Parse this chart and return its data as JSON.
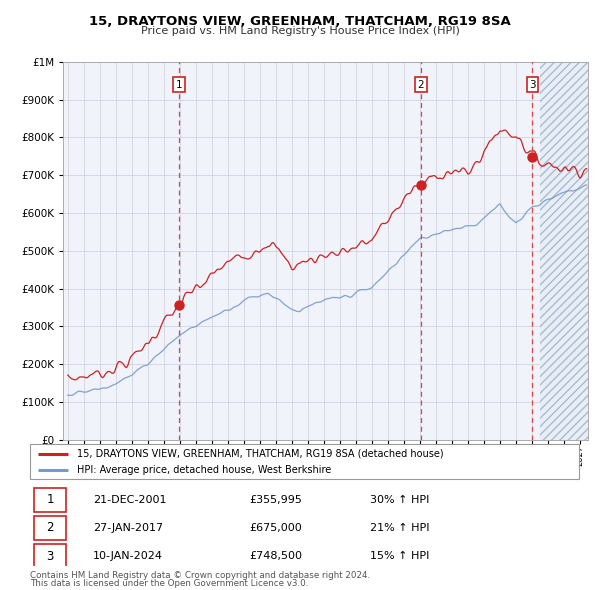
{
  "title": "15, DRAYTONS VIEW, GREENHAM, THATCHAM, RG19 8SA",
  "subtitle": "Price paid vs. HM Land Registry's House Price Index (HPI)",
  "red_label": "15, DRAYTONS VIEW, GREENHAM, THATCHAM, RG19 8SA (detached house)",
  "blue_label": "HPI: Average price, detached house, West Berkshire",
  "transactions": [
    {
      "num": 1,
      "date": "21-DEC-2001",
      "price": 355995,
      "year": 2001.97,
      "hpi_pct": "30% ↑ HPI"
    },
    {
      "num": 2,
      "date": "27-JAN-2017",
      "price": 675000,
      "year": 2017.07,
      "hpi_pct": "21% ↑ HPI"
    },
    {
      "num": 3,
      "date": "10-JAN-2024",
      "price": 748500,
      "year": 2024.03,
      "hpi_pct": "15% ↑ HPI"
    }
  ],
  "footnote1": "Contains HM Land Registry data © Crown copyright and database right 2024.",
  "footnote2": "This data is licensed under the Open Government Licence v3.0.",
  "ylim": [
    0,
    1000000
  ],
  "xlim_start": 1994.7,
  "xlim_end": 2027.5,
  "background_color": "#ffffff",
  "plot_bg_color": "#f0f4fa",
  "grid_color": "#ccccdd",
  "red_color": "#cc2222",
  "blue_color": "#7799cc",
  "dashed_line_color": "#dd4444",
  "hatch_start": 2024.5
}
